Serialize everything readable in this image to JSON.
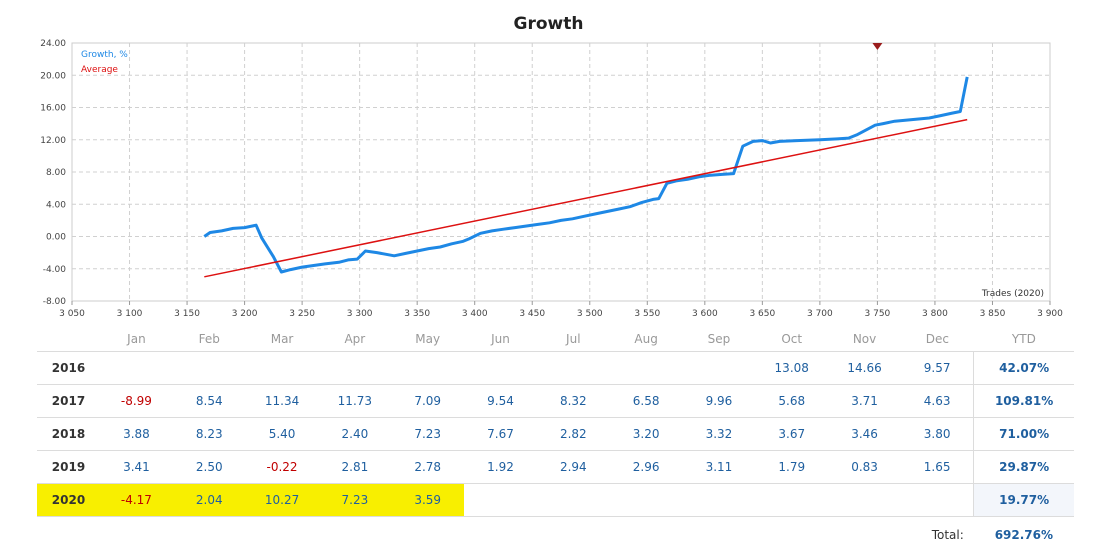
{
  "chart_data": {
    "type": "line",
    "title": "Growth",
    "xlim": [
      3050,
      3900
    ],
    "ylim": [
      -8,
      24
    ],
    "x_ticks": [
      "3 050",
      "3 100",
      "3 150",
      "3 200",
      "3 250",
      "3 300",
      "3 350",
      "3 400",
      "3 450",
      "3 500",
      "3 550",
      "3 600",
      "3 650",
      "3 700",
      "3 750",
      "3 800",
      "3 850",
      "3 900"
    ],
    "y_ticks": [
      "24.00",
      "20.00",
      "16.00",
      "12.00",
      "8.00",
      "4.00",
      "0.00",
      "-4.00",
      "-8.00"
    ],
    "x_axis_caption": "Trades (2020)",
    "grid": true,
    "legend_position": "top-left",
    "series": [
      {
        "name": "Growth, %",
        "color": "#1e88e5",
        "points": [
          [
            3165,
            0.0
          ],
          [
            3170,
            0.5
          ],
          [
            3180,
            0.7
          ],
          [
            3190,
            1.0
          ],
          [
            3200,
            1.1
          ],
          [
            3210,
            1.4
          ],
          [
            3215,
            -0.2
          ],
          [
            3225,
            -2.5
          ],
          [
            3232,
            -4.4
          ],
          [
            3240,
            -4.1
          ],
          [
            3250,
            -3.8
          ],
          [
            3260,
            -3.6
          ],
          [
            3270,
            -3.4
          ],
          [
            3282,
            -3.2
          ],
          [
            3290,
            -2.9
          ],
          [
            3298,
            -2.8
          ],
          [
            3305,
            -1.8
          ],
          [
            3315,
            -2.0
          ],
          [
            3330,
            -2.4
          ],
          [
            3340,
            -2.1
          ],
          [
            3350,
            -1.8
          ],
          [
            3360,
            -1.5
          ],
          [
            3370,
            -1.3
          ],
          [
            3380,
            -0.9
          ],
          [
            3390,
            -0.6
          ],
          [
            3395,
            -0.3
          ],
          [
            3405,
            0.4
          ],
          [
            3415,
            0.7
          ],
          [
            3425,
            0.9
          ],
          [
            3435,
            1.1
          ],
          [
            3445,
            1.3
          ],
          [
            3455,
            1.5
          ],
          [
            3465,
            1.7
          ],
          [
            3475,
            2.0
          ],
          [
            3485,
            2.2
          ],
          [
            3495,
            2.5
          ],
          [
            3505,
            2.8
          ],
          [
            3515,
            3.1
          ],
          [
            3525,
            3.4
          ],
          [
            3535,
            3.7
          ],
          [
            3545,
            4.2
          ],
          [
            3555,
            4.6
          ],
          [
            3560,
            4.7
          ],
          [
            3567,
            6.6
          ],
          [
            3575,
            6.9
          ],
          [
            3585,
            7.1
          ],
          [
            3595,
            7.4
          ],
          [
            3605,
            7.6
          ],
          [
            3615,
            7.7
          ],
          [
            3625,
            7.8
          ],
          [
            3633,
            11.2
          ],
          [
            3642,
            11.8
          ],
          [
            3650,
            11.9
          ],
          [
            3657,
            11.6
          ],
          [
            3665,
            11.8
          ],
          [
            3680,
            11.9
          ],
          [
            3700,
            12.0
          ],
          [
            3715,
            12.1
          ],
          [
            3725,
            12.2
          ],
          [
            3732,
            12.6
          ],
          [
            3740,
            13.2
          ],
          [
            3748,
            13.8
          ],
          [
            3755,
            14.0
          ],
          [
            3765,
            14.3
          ],
          [
            3780,
            14.5
          ],
          [
            3795,
            14.7
          ],
          [
            3805,
            15.0
          ],
          [
            3815,
            15.3
          ],
          [
            3822,
            15.5
          ],
          [
            3828,
            19.8
          ]
        ]
      },
      {
        "name": "Average",
        "color": "#dd1111",
        "points": [
          [
            3165,
            -5.0
          ],
          [
            3828,
            14.5
          ]
        ]
      }
    ],
    "marker": {
      "x": 3750,
      "y": 24,
      "color": "#9a1c1c"
    }
  },
  "table": {
    "months": [
      "Jan",
      "Feb",
      "Mar",
      "Apr",
      "May",
      "Jun",
      "Jul",
      "Aug",
      "Sep",
      "Oct",
      "Nov",
      "Dec"
    ],
    "ytd_label": "YTD",
    "rows": [
      {
        "year": "2016",
        "values": [
          "",
          "",
          "",
          "",
          "",
          "",
          "",
          "",
          "",
          "13.08",
          "14.66",
          "9.57"
        ],
        "ytd": "42.07%"
      },
      {
        "year": "2017",
        "values": [
          "-8.99",
          "8.54",
          "11.34",
          "11.73",
          "7.09",
          "9.54",
          "8.32",
          "6.58",
          "9.96",
          "5.68",
          "3.71",
          "4.63"
        ],
        "ytd": "109.81%"
      },
      {
        "year": "2018",
        "values": [
          "3.88",
          "8.23",
          "5.40",
          "2.40",
          "7.23",
          "7.67",
          "2.82",
          "3.20",
          "3.32",
          "3.67",
          "3.46",
          "3.80"
        ],
        "ytd": "71.00%"
      },
      {
        "year": "2019",
        "values": [
          "3.41",
          "2.50",
          "-0.22",
          "2.81",
          "2.78",
          "1.92",
          "2.94",
          "2.96",
          "3.11",
          "1.79",
          "0.83",
          "1.65"
        ],
        "ytd": "29.87%"
      },
      {
        "year": "2020",
        "values": [
          "-4.17",
          "2.04",
          "10.27",
          "7.23",
          "3.59",
          "",
          "",
          "",
          "",
          "",
          "",
          ""
        ],
        "ytd": "19.77%",
        "highlight": true
      }
    ],
    "total_label": "Total:",
    "total_value": "692.76%"
  },
  "highlight_color": "#f8ef00"
}
